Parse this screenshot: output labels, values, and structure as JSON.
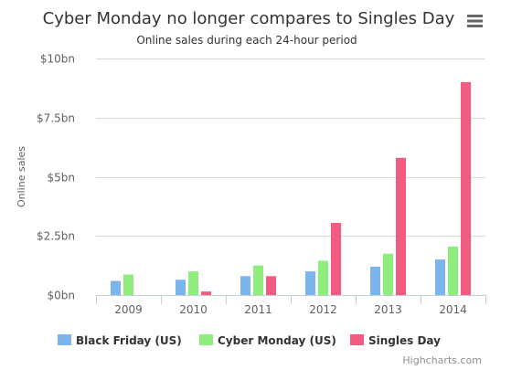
{
  "chart_data": {
    "type": "bar",
    "title": "Cyber Monday no longer compares to Singles Day",
    "subtitle": "Online sales during each 24-hour period",
    "ylabel": "Online sales",
    "categories": [
      "2009",
      "2010",
      "2011",
      "2012",
      "2013",
      "2014"
    ],
    "y_ticks": [
      "$0bn",
      "$2.5bn",
      "$5bn",
      "$7.5bn",
      "$10bn"
    ],
    "y_tick_values": [
      0,
      2.5,
      5,
      7.5,
      10
    ],
    "ylim": [
      0,
      10
    ],
    "grid": true,
    "legend_position": "bottom",
    "series": [
      {
        "name": "Black Friday (US)",
        "color": "#7cb5ec",
        "values": [
          0.6,
          0.65,
          0.8,
          1.0,
          1.2,
          1.5
        ]
      },
      {
        "name": "Cyber Monday (US)",
        "color": "#90ed7d",
        "values": [
          0.87,
          1.0,
          1.25,
          1.45,
          1.75,
          2.05
        ]
      },
      {
        "name": "Singles Day",
        "color": "#f15c80",
        "values": [
          0,
          0.15,
          0.8,
          3.05,
          5.8,
          9.0
        ]
      }
    ],
    "credits": "Highcharts.com"
  },
  "menu_icon": "hamburger-menu-icon"
}
